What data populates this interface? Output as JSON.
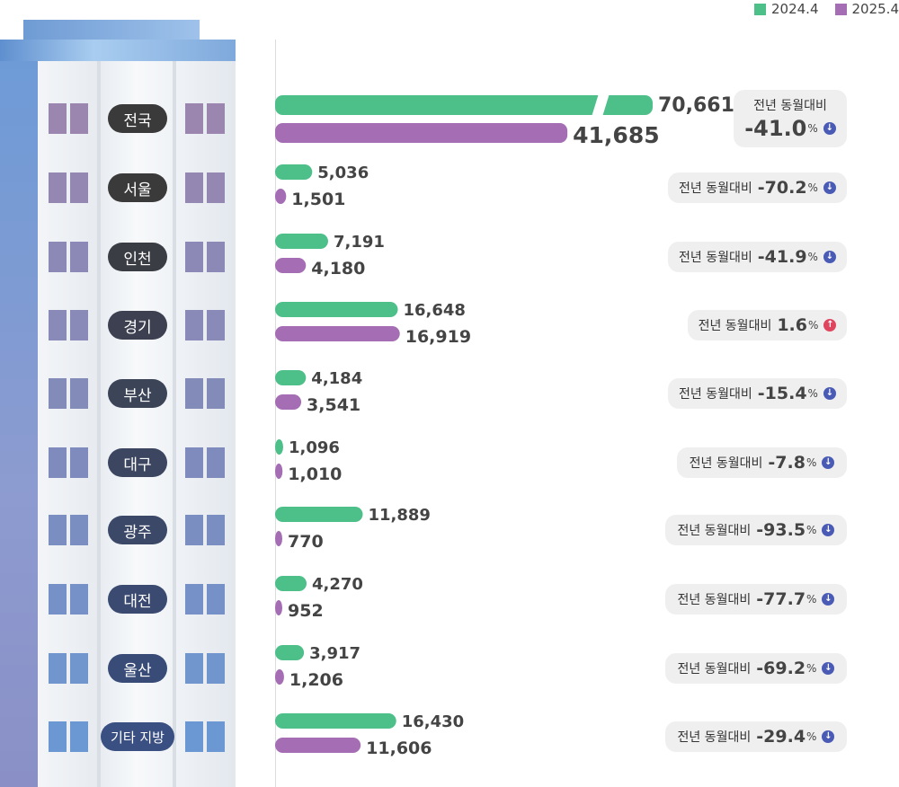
{
  "colors": {
    "y2024": "#4dbf89",
    "y2025": "#a46db4",
    "down": "#4a5bb5",
    "up": "#e0455f"
  },
  "legend": {
    "series_a": "2024.4",
    "series_b": "2025.4"
  },
  "badge_label": "전년 동월대비",
  "pct_unit": "%",
  "chart_data": {
    "type": "bar",
    "orientation": "horizontal",
    "categories": [
      "전국",
      "서울",
      "인천",
      "경기",
      "부산",
      "대구",
      "광주",
      "대전",
      "울산",
      "기타 지방"
    ],
    "series": [
      {
        "name": "2024.4",
        "values": [
          70661,
          5036,
          7191,
          16648,
          4184,
          1096,
          11889,
          4270,
          3917,
          16430
        ]
      },
      {
        "name": "2025.4",
        "values": [
          41685,
          1501,
          4180,
          16919,
          3541,
          1010,
          770,
          952,
          1206,
          11606
        ]
      }
    ],
    "changes": [
      "-41.0",
      "-70.2",
      "-41.9",
      "1.6",
      "-15.4",
      "-7.8",
      "-93.5",
      "-77.7",
      "-69.2",
      "-29.4"
    ],
    "change_direction": [
      "down",
      "down",
      "down",
      "up",
      "down",
      "down",
      "down",
      "down",
      "down",
      "down"
    ],
    "value_labels_a": [
      "70,661",
      "5,036",
      "7,191",
      "16,648",
      "4,184",
      "1,096",
      "11,889",
      "4,270",
      "3,917",
      "16,430"
    ],
    "value_labels_b": [
      "41,685",
      "1,501",
      "4,180",
      "16,919",
      "3,541",
      "1,010",
      "770",
      "952",
      "1,206",
      "11,606"
    ],
    "axis_break": "전국",
    "legend_position": "top-right",
    "grid": false
  }
}
